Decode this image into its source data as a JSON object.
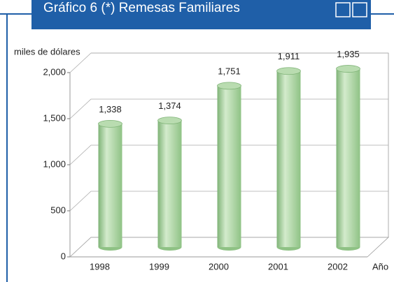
{
  "chart_data": {
    "type": "bar",
    "title": "Gráfico 6 (*) Remesas Familiares",
    "y_label": "miles de dólares",
    "x_label": "Año",
    "categories": [
      "1998",
      "1999",
      "2000",
      "2001",
      "2002"
    ],
    "values": [
      1338,
      1374,
      1751,
      1911,
      1935
    ],
    "value_labels": [
      "1,338",
      "1,374",
      "1,751",
      "1,911",
      "1,935"
    ],
    "color": "#a9d4a0",
    "ylim": [
      0,
      2000
    ],
    "yticks": [
      0,
      500,
      {
        "value": 1000,
        "label": "1,000"
      },
      {
        "value": 1500,
        "label": "1,500"
      },
      {
        "value": 2000,
        "label": "2,000"
      }
    ],
    "grid": true
  }
}
